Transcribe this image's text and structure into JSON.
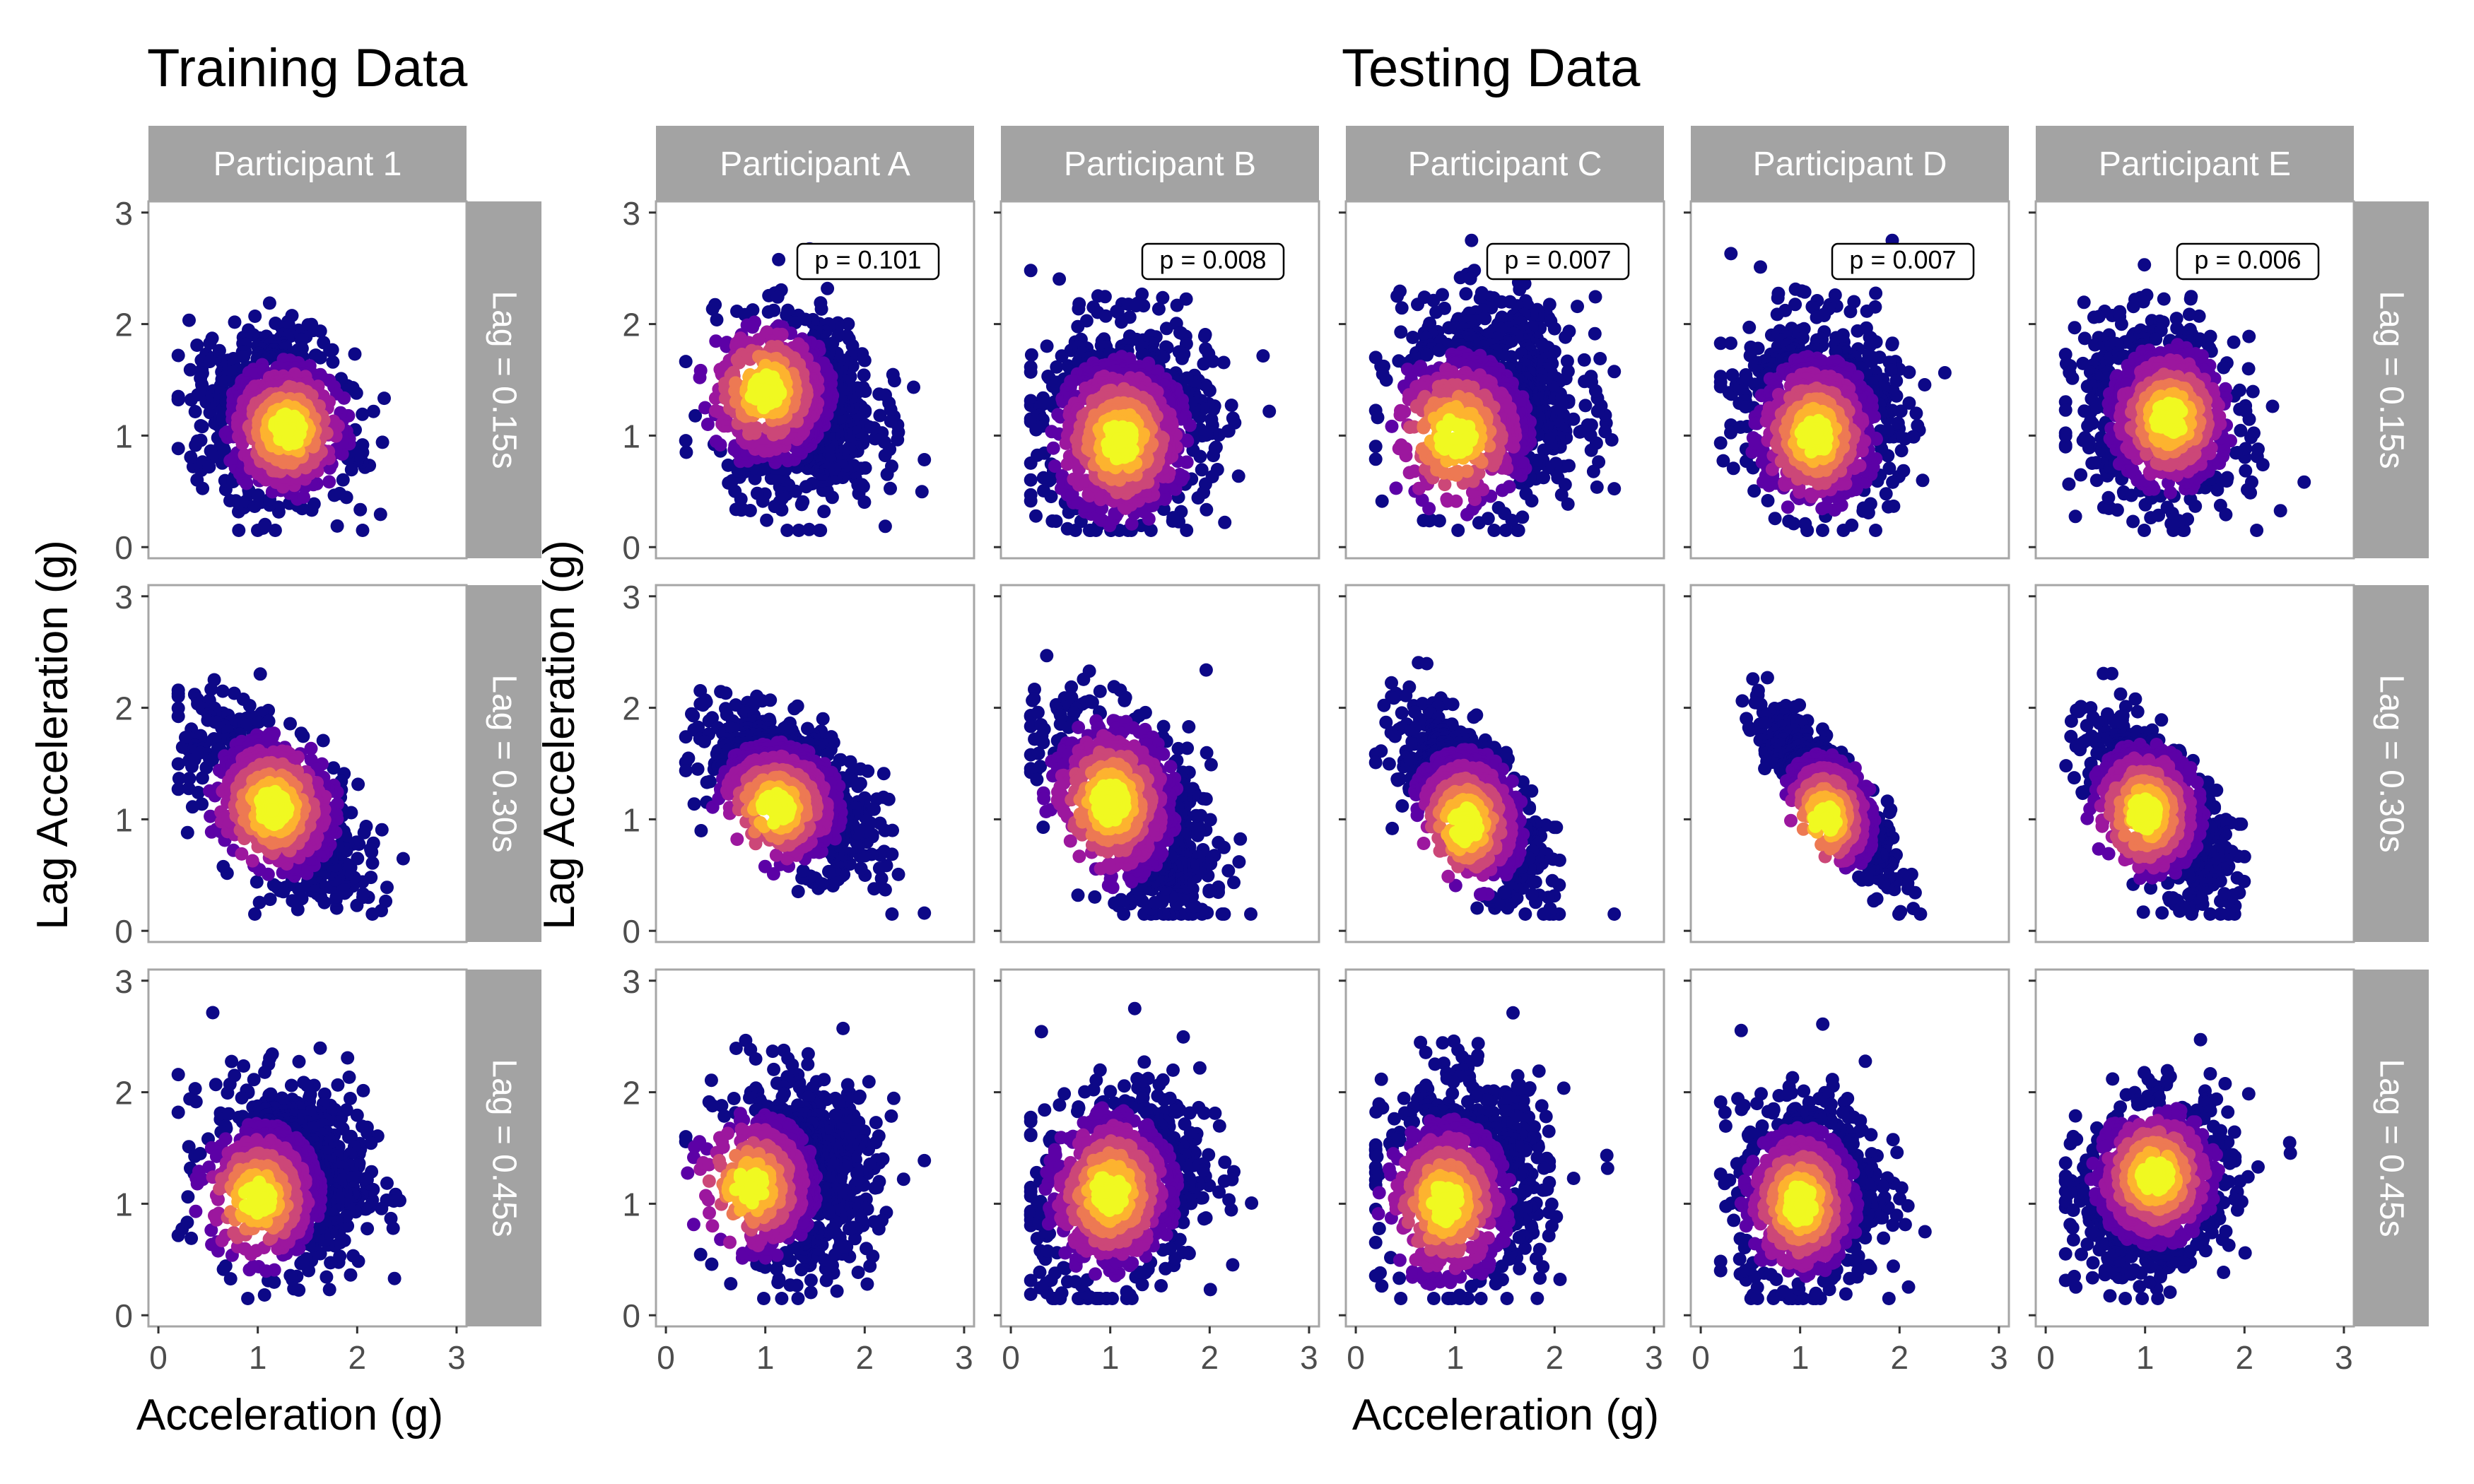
{
  "figure": {
    "training_title": "Training Data",
    "testing_title": "Testing Data",
    "training_xlabel": "Acceleration (g)",
    "testing_xlabel": "Acceleration (g)",
    "training_ylabel": "Lag Acceleration (g)",
    "testing_ylabel": "Lag Acceleration (g)"
  },
  "density_palette": [
    "#0d0887",
    "#5c01a6",
    "#9c179e",
    "#cc4778",
    "#ed7953",
    "#fdb32f",
    "#f0f921"
  ],
  "chart_data": {
    "type": "scatter",
    "description_kind": "faceted density-colored scatter",
    "xlim": [
      -0.1,
      3.1
    ],
    "ylim": [
      -0.1,
      3.1
    ],
    "x_ticks": [
      "0",
      "1",
      "2",
      "3"
    ],
    "y_ticks": [
      "0",
      "1",
      "2",
      "3"
    ],
    "grid": false,
    "row_strips": [
      "Lag = 0.15s",
      "Lag = 0.30s",
      "Lag = 0.45s"
    ],
    "training": {
      "columns": [
        {
          "strip": "Participant 1",
          "panels": [
            {
              "lag": "0.15s",
              "center": [
                1.2,
                1.15
              ],
              "spread": [
                0.38,
                0.38
              ],
              "corr": -0.1,
              "peak": [
                1.3,
                1.05
              ],
              "p_label": ""
            },
            {
              "lag": "0.30s",
              "center": [
                1.2,
                1.15
              ],
              "spread": [
                0.4,
                0.4
              ],
              "corr": -0.6,
              "peak": [
                1.15,
                1.1
              ],
              "p_label": ""
            },
            {
              "lag": "0.45s",
              "center": [
                1.3,
                1.25
              ],
              "spread": [
                0.38,
                0.4
              ],
              "corr": -0.05,
              "peak": [
                1.0,
                1.05
              ],
              "p_label": ""
            }
          ]
        }
      ]
    },
    "testing": {
      "columns": [
        {
          "strip": "Participant A",
          "panels": [
            {
              "lag": "0.15s",
              "center": [
                1.3,
                1.25
              ],
              "spread": [
                0.4,
                0.4
              ],
              "corr": -0.05,
              "peak": [
                1.0,
                1.4
              ],
              "p_label": "p = 0.101"
            },
            {
              "lag": "0.30s",
              "center": [
                1.25,
                1.25
              ],
              "spread": [
                0.4,
                0.35
              ],
              "corr": -0.55,
              "peak": [
                1.1,
                1.1
              ],
              "p_label": ""
            },
            {
              "lag": "0.45s",
              "center": [
                1.3,
                1.25
              ],
              "spread": [
                0.4,
                0.4
              ],
              "corr": 0.0,
              "peak": [
                0.85,
                1.15
              ],
              "p_label": ""
            }
          ]
        },
        {
          "strip": "Participant B",
          "panels": [
            {
              "lag": "0.15s",
              "center": [
                1.15,
                1.1
              ],
              "spread": [
                0.42,
                0.45
              ],
              "corr": 0.05,
              "peak": [
                1.1,
                0.95
              ],
              "p_label": "p = 0.008"
            },
            {
              "lag": "0.30s",
              "center": [
                1.2,
                1.1
              ],
              "spread": [
                0.4,
                0.45
              ],
              "corr": -0.5,
              "peak": [
                1.0,
                1.15
              ],
              "p_label": ""
            },
            {
              "lag": "0.45s",
              "center": [
                1.1,
                1.15
              ],
              "spread": [
                0.4,
                0.45
              ],
              "corr": 0.2,
              "peak": [
                1.0,
                1.1
              ],
              "p_label": ""
            }
          ]
        },
        {
          "strip": "Participant C",
          "panels": [
            {
              "lag": "0.15s",
              "center": [
                1.35,
                1.3
              ],
              "spread": [
                0.45,
                0.45
              ],
              "corr": 0.0,
              "peak": [
                1.0,
                1.0
              ],
              "p_label": "p = 0.007"
            },
            {
              "lag": "0.30s",
              "center": [
                1.15,
                1.15
              ],
              "spread": [
                0.35,
                0.4
              ],
              "corr": -0.65,
              "peak": [
                1.1,
                0.95
              ],
              "p_label": ""
            },
            {
              "lag": "0.45s",
              "center": [
                1.1,
                1.2
              ],
              "spread": [
                0.4,
                0.45
              ],
              "corr": 0.05,
              "peak": [
                0.9,
                1.0
              ],
              "p_label": ""
            }
          ]
        },
        {
          "strip": "Participant D",
          "panels": [
            {
              "lag": "0.15s",
              "center": [
                1.2,
                1.2
              ],
              "spread": [
                0.38,
                0.42
              ],
              "corr": -0.1,
              "peak": [
                1.15,
                1.0
              ],
              "p_label": "p = 0.007"
            },
            {
              "lag": "0.30s",
              "center": [
                1.3,
                1.2
              ],
              "spread": [
                0.3,
                0.35
              ],
              "corr": -0.8,
              "peak": [
                1.25,
                1.0
              ],
              "p_label": ""
            },
            {
              "lag": "0.45s",
              "center": [
                1.1,
                1.1
              ],
              "spread": [
                0.35,
                0.42
              ],
              "corr": 0.05,
              "peak": [
                1.0,
                1.0
              ],
              "p_label": ""
            }
          ]
        },
        {
          "strip": "Participant E",
          "panels": [
            {
              "lag": "0.15s",
              "center": [
                1.15,
                1.2
              ],
              "spread": [
                0.38,
                0.4
              ],
              "corr": -0.15,
              "peak": [
                1.25,
                1.15
              ],
              "p_label": "p = 0.006"
            },
            {
              "lag": "0.30s",
              "center": [
                1.1,
                1.1
              ],
              "spread": [
                0.35,
                0.38
              ],
              "corr": -0.6,
              "peak": [
                1.0,
                1.05
              ],
              "p_label": ""
            },
            {
              "lag": "0.45s",
              "center": [
                1.1,
                1.15
              ],
              "spread": [
                0.38,
                0.38
              ],
              "corr": 0.2,
              "peak": [
                1.1,
                1.25
              ],
              "p_label": ""
            }
          ]
        }
      ]
    }
  }
}
